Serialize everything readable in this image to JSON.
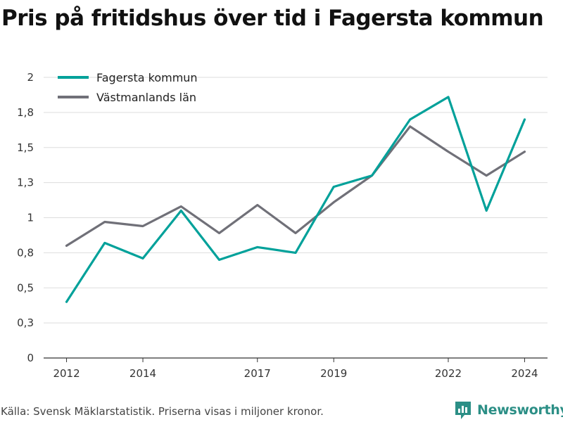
{
  "title": "Pris på fritidshus över tid i Fagersta kommun",
  "source": "Källa: Svensk Mäklarstatistik. Priserna visas i miljoner kronor.",
  "brand": {
    "name": "Newsworthy",
    "icon": "newsworthy-logo-icon"
  },
  "colors": {
    "fagersta": "#00a19a",
    "vastmanland": "#707078",
    "grid": "#dddddd",
    "brand": "#2c8f86"
  },
  "chart_data": {
    "type": "line",
    "x": [
      2012,
      2013,
      2014,
      2015,
      2016,
      2017,
      2018,
      2019,
      2020,
      2021,
      2022,
      2023,
      2024
    ],
    "x_tick_labels": [
      "2012",
      "2014",
      "2017",
      "2019",
      "2022",
      "2024"
    ],
    "x_tick_values": [
      2012,
      2014,
      2017,
      2019,
      2022,
      2024
    ],
    "y_tick_labels": [
      "0",
      "0,3",
      "0,5",
      "0,8",
      "1",
      "1,3",
      "1,5",
      "1,8",
      "2"
    ],
    "y_tick_values": [
      0,
      0.25,
      0.5,
      0.75,
      1,
      1.25,
      1.5,
      1.75,
      2
    ],
    "ylim": [
      0,
      2
    ],
    "xlim": [
      2011.4,
      2024.6
    ],
    "grid": "horizontal",
    "legend_position": "top-left",
    "series": [
      {
        "name": "Fagersta kommun",
        "color": "#00a19a",
        "values": [
          0.4,
          0.82,
          0.71,
          1.05,
          0.7,
          0.79,
          0.75,
          1.22,
          1.3,
          1.7,
          1.86,
          1.05,
          1.7
        ]
      },
      {
        "name": "Västmanlands län",
        "color": "#707078",
        "values": [
          0.8,
          0.97,
          0.94,
          1.08,
          0.89,
          1.09,
          0.89,
          1.11,
          1.3,
          1.65,
          1.47,
          1.3,
          1.47
        ]
      }
    ]
  }
}
